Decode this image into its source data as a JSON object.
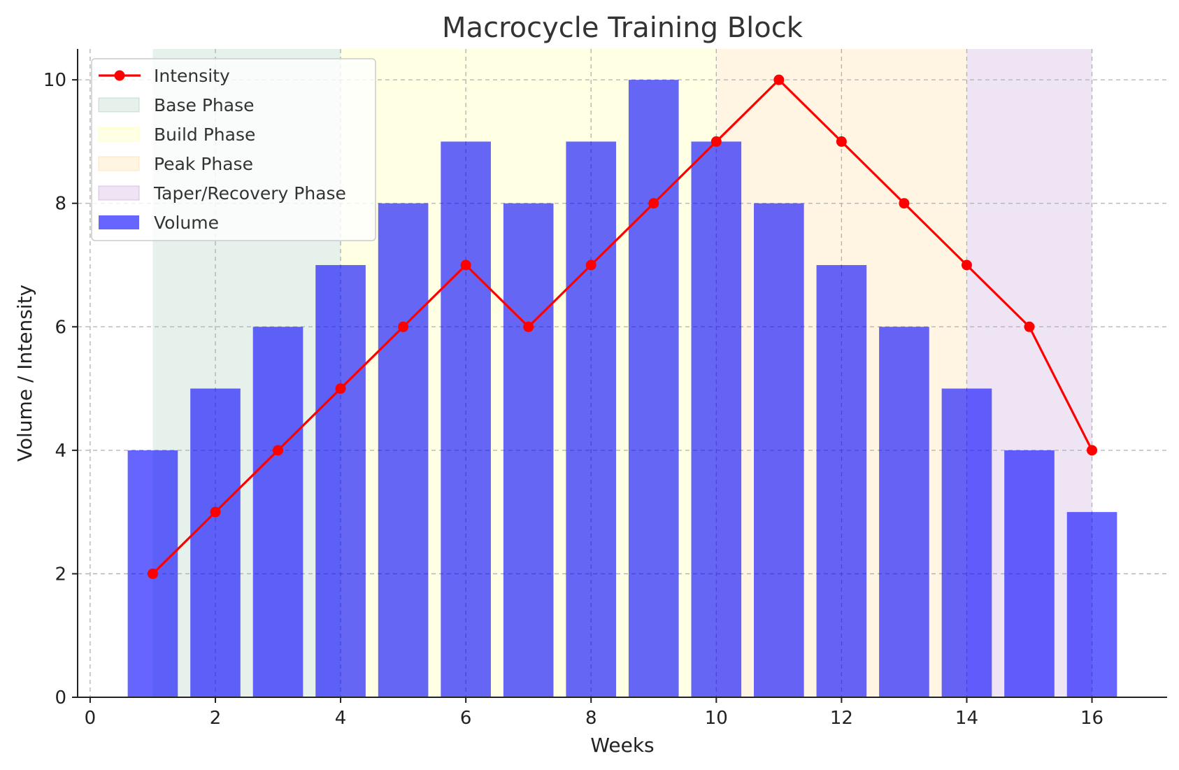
{
  "chart_data": {
    "type": "bar",
    "title": "Macrocycle Training Block",
    "xlabel": "Weeks",
    "ylabel": "Volume / Intensity",
    "xlim": [
      -0.2,
      17.2
    ],
    "ylim": [
      0,
      10.5
    ],
    "xticks": [
      0,
      2,
      4,
      6,
      8,
      10,
      12,
      14,
      16
    ],
    "yticks": [
      0,
      2,
      4,
      6,
      8,
      10
    ],
    "grid": true,
    "legend_position": "top-left",
    "phases": [
      {
        "name": "Base Phase",
        "start": 1,
        "end": 4,
        "color": "#2e8b57",
        "alpha": 0.12
      },
      {
        "name": "Build Phase",
        "start": 4,
        "end": 10,
        "color": "#ffff80",
        "alpha": 0.22
      },
      {
        "name": "Peak Phase",
        "start": 10,
        "end": 14,
        "color": "#ffc660",
        "alpha": 0.18
      },
      {
        "name": "Taper/Recovery Phase",
        "start": 14,
        "end": 16,
        "color": "#9b59b6",
        "alpha": 0.16
      }
    ],
    "series": [
      {
        "name": "Volume",
        "kind": "bar",
        "color": "#0000ff",
        "alpha": 0.6,
        "x": [
          1,
          2,
          3,
          4,
          5,
          6,
          7,
          8,
          9,
          10,
          11,
          12,
          13,
          14,
          15,
          16
        ],
        "values": [
          4,
          5,
          6,
          7,
          8,
          9,
          8,
          9,
          10,
          9,
          8,
          7,
          6,
          5,
          4,
          3
        ]
      },
      {
        "name": "Intensity",
        "kind": "line",
        "color": "#ff0000",
        "x": [
          1,
          2,
          3,
          4,
          5,
          6,
          7,
          8,
          9,
          10,
          11,
          12,
          13,
          14,
          15,
          16
        ],
        "values": [
          2,
          3,
          4,
          5,
          6,
          7,
          6,
          7,
          8,
          9,
          10,
          9,
          8,
          7,
          6,
          4
        ]
      }
    ],
    "legend": [
      "Intensity",
      "Base Phase",
      "Build Phase",
      "Peak Phase",
      "Taper/Recovery Phase",
      "Volume"
    ]
  }
}
